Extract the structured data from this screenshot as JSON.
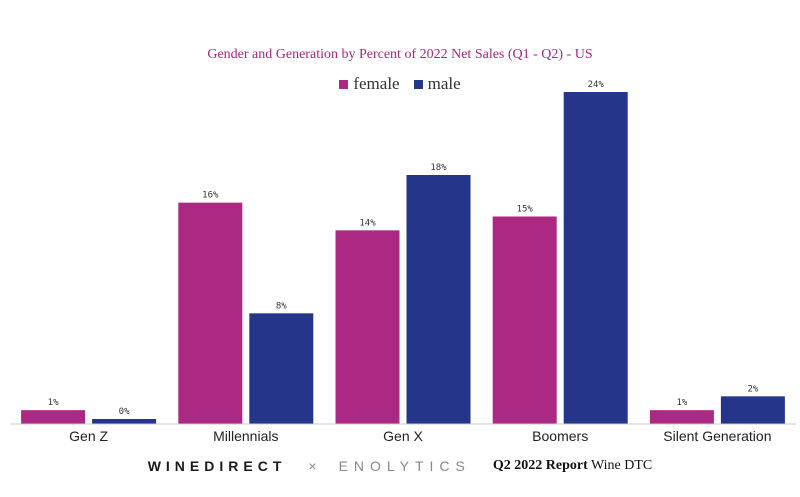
{
  "colors": {
    "female": "#ab2983",
    "male": "#253589",
    "title": "#a8257e",
    "axis": "#c8c8c8"
  },
  "chart_data": {
    "type": "bar",
    "title": "Gender and Generation by Percent of 2022 Net Sales (Q1 - Q2) - US",
    "categories": [
      "Gen Z",
      "Millennials",
      "Gen X",
      "Boomers",
      "Silent Generation"
    ],
    "series": [
      {
        "name": "female",
        "values": [
          1,
          16,
          14,
          15,
          1
        ],
        "labels": [
          "1%",
          "16%",
          "14%",
          "15%",
          "1%"
        ]
      },
      {
        "name": "male",
        "values": [
          0,
          8,
          18,
          24,
          2
        ],
        "labels": [
          "0%",
          "8%",
          "18%",
          "24%",
          "2%"
        ]
      }
    ],
    "ylim": [
      0,
      24
    ],
    "legend": "top-center",
    "grid": false
  },
  "footer": {
    "brand_left": "WINEDIRECT",
    "separator": "×",
    "brand_right": "ENOLYTICS",
    "report_bold": "Q2 2022 Report",
    "report_rest": "Wine DTC"
  }
}
